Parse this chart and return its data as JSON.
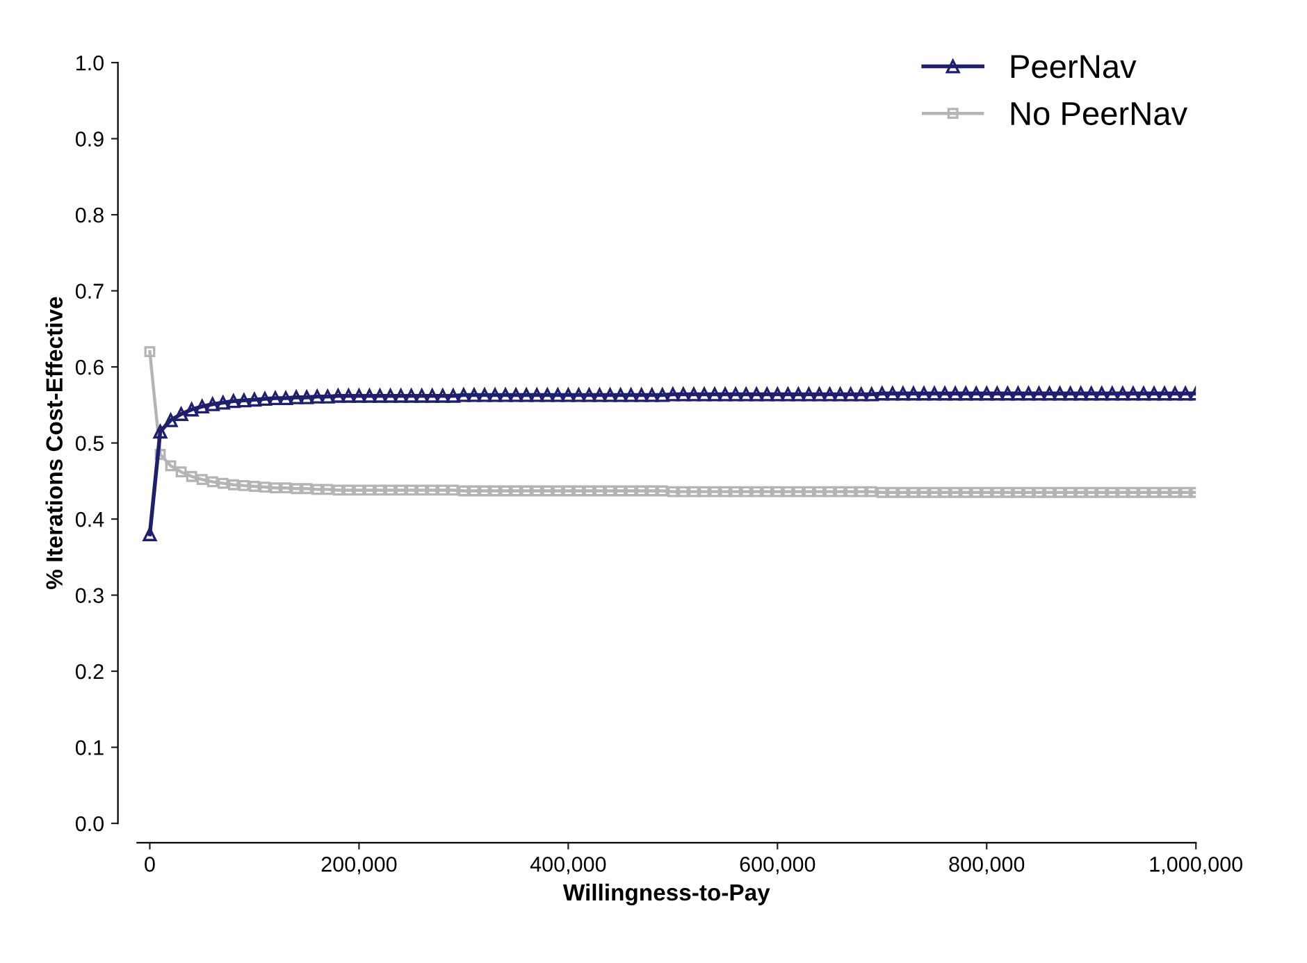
{
  "chart_data": {
    "type": "line",
    "xlabel": "Willingness-to-Pay",
    "ylabel": "% Iterations Cost-Effective",
    "x": [
      0,
      10000,
      20000,
      30000,
      40000,
      50000,
      60000,
      70000,
      80000,
      90000,
      100000,
      110000,
      120000,
      130000,
      140000,
      150000,
      160000,
      170000,
      180000,
      190000,
      200000,
      210000,
      220000,
      230000,
      240000,
      250000,
      260000,
      270000,
      280000,
      290000,
      300000,
      310000,
      320000,
      330000,
      340000,
      350000,
      360000,
      370000,
      380000,
      390000,
      400000,
      410000,
      420000,
      430000,
      440000,
      450000,
      460000,
      470000,
      480000,
      490000,
      500000,
      510000,
      520000,
      530000,
      540000,
      550000,
      560000,
      570000,
      580000,
      590000,
      600000,
      610000,
      620000,
      630000,
      640000,
      650000,
      660000,
      670000,
      680000,
      690000,
      700000,
      710000,
      720000,
      730000,
      740000,
      750000,
      760000,
      770000,
      780000,
      790000,
      800000,
      810000,
      820000,
      830000,
      840000,
      850000,
      860000,
      870000,
      880000,
      890000,
      900000,
      910000,
      920000,
      930000,
      940000,
      950000,
      960000,
      970000,
      980000,
      990000,
      1000000
    ],
    "series": [
      {
        "name": "PeerNav",
        "color": "#1f1f6e",
        "marker": "triangle",
        "values": [
          0.38,
          0.515,
          0.53,
          0.538,
          0.544,
          0.548,
          0.551,
          0.553,
          0.555,
          0.556,
          0.557,
          0.558,
          0.559,
          0.559,
          0.56,
          0.56,
          0.561,
          0.561,
          0.562,
          0.562,
          0.562,
          0.562,
          0.562,
          0.562,
          0.562,
          0.562,
          0.562,
          0.562,
          0.562,
          0.562,
          0.563,
          0.563,
          0.563,
          0.563,
          0.563,
          0.563,
          0.563,
          0.563,
          0.563,
          0.563,
          0.563,
          0.563,
          0.563,
          0.563,
          0.563,
          0.563,
          0.563,
          0.563,
          0.563,
          0.563,
          0.564,
          0.564,
          0.564,
          0.564,
          0.564,
          0.564,
          0.564,
          0.564,
          0.564,
          0.564,
          0.564,
          0.564,
          0.564,
          0.564,
          0.564,
          0.564,
          0.564,
          0.564,
          0.564,
          0.564,
          0.565,
          0.565,
          0.565,
          0.565,
          0.565,
          0.565,
          0.565,
          0.565,
          0.565,
          0.565,
          0.565,
          0.565,
          0.565,
          0.565,
          0.565,
          0.565,
          0.565,
          0.565,
          0.565,
          0.565,
          0.565,
          0.565,
          0.565,
          0.565,
          0.565,
          0.565,
          0.565,
          0.565,
          0.565,
          0.565,
          0.565
        ]
      },
      {
        "name": "No PeerNav",
        "color": "#b4b4b4",
        "marker": "square",
        "values": [
          0.62,
          0.485,
          0.47,
          0.462,
          0.456,
          0.452,
          0.449,
          0.447,
          0.445,
          0.444,
          0.443,
          0.442,
          0.441,
          0.441,
          0.44,
          0.44,
          0.439,
          0.439,
          0.438,
          0.438,
          0.438,
          0.438,
          0.438,
          0.438,
          0.438,
          0.438,
          0.438,
          0.438,
          0.438,
          0.438,
          0.437,
          0.437,
          0.437,
          0.437,
          0.437,
          0.437,
          0.437,
          0.437,
          0.437,
          0.437,
          0.437,
          0.437,
          0.437,
          0.437,
          0.437,
          0.437,
          0.437,
          0.437,
          0.437,
          0.437,
          0.436,
          0.436,
          0.436,
          0.436,
          0.436,
          0.436,
          0.436,
          0.436,
          0.436,
          0.436,
          0.436,
          0.436,
          0.436,
          0.436,
          0.436,
          0.436,
          0.436,
          0.436,
          0.436,
          0.436,
          0.435,
          0.435,
          0.435,
          0.435,
          0.435,
          0.435,
          0.435,
          0.435,
          0.435,
          0.435,
          0.435,
          0.435,
          0.435,
          0.435,
          0.435,
          0.435,
          0.435,
          0.435,
          0.435,
          0.435,
          0.435,
          0.435,
          0.435,
          0.435,
          0.435,
          0.435,
          0.435,
          0.435,
          0.435,
          0.435,
          0.435
        ]
      }
    ],
    "xlim": [
      -12000,
      1000000
    ],
    "xticks": [
      0,
      {
        "value": 200000,
        "label": "200,000"
      },
      {
        "value": 400000,
        "label": "400,000"
      },
      {
        "value": 600000,
        "label": "600,000"
      },
      {
        "value": 800000,
        "label": "800,000"
      },
      {
        "value": 1000000,
        "label": "1,000,000"
      }
    ],
    "ylim": [
      0.0,
      1.0
    ],
    "yticks": [
      {
        "value": 0,
        "label": "0.0"
      },
      0.1,
      0.2,
      0.3,
      0.4,
      0.5,
      0.6,
      0.7,
      0.8,
      0.9,
      {
        "value": 1,
        "label": "1.0"
      }
    ],
    "grid": false,
    "legend": "top right",
    "line_style": "solid"
  }
}
